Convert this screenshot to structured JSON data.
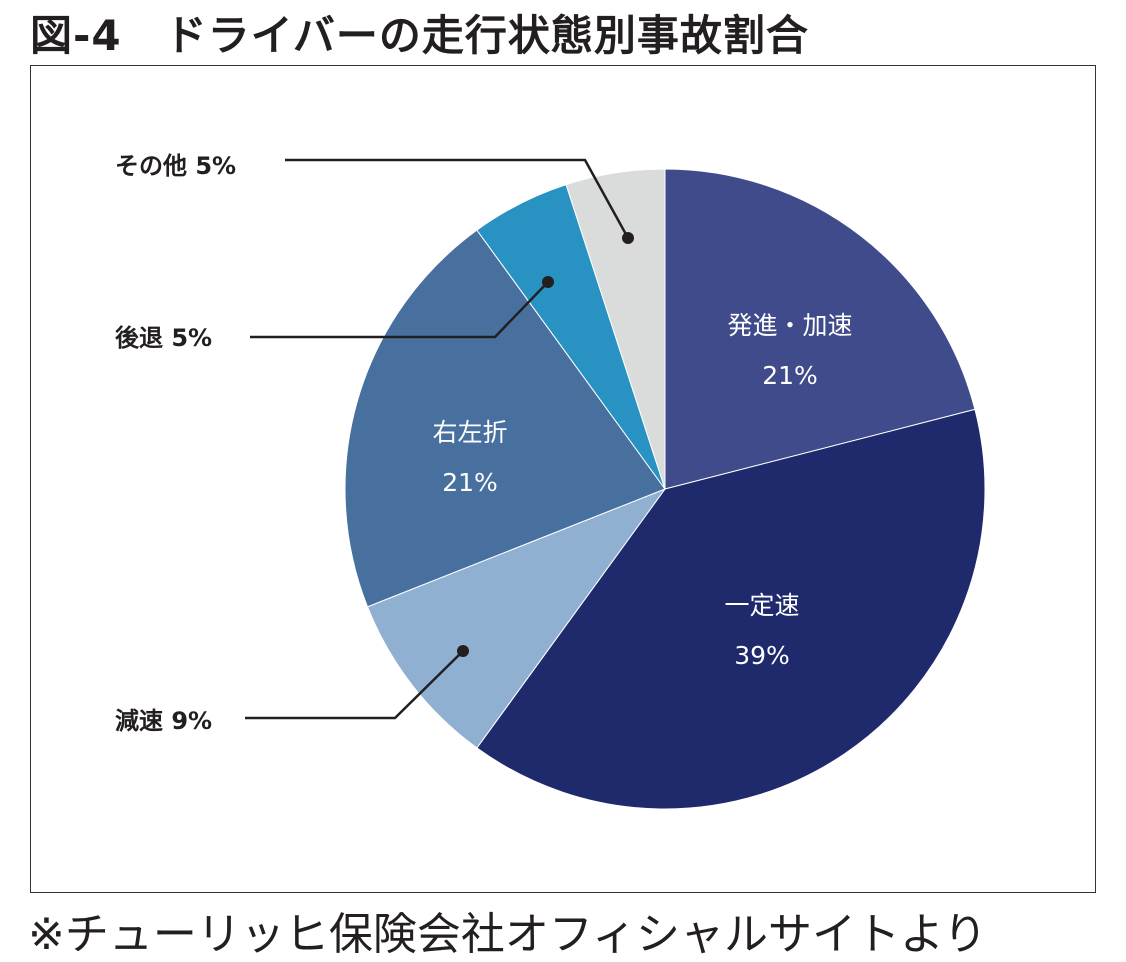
{
  "title": "図-4　ドライバーの走行状態別事故割合",
  "source": "※チューリッヒ保険会社オフィシャルサイトより",
  "chart_data": {
    "type": "pie",
    "title": "図-4　ドライバーの走行状態別事故割合",
    "start": "12 o'clock, clockwise",
    "slices": [
      {
        "label": "発進・加速",
        "value": 21,
        "text": "21%",
        "color": "#3f4b8b",
        "label_position": "inside"
      },
      {
        "label": "一定速",
        "value": 39,
        "text": "39%",
        "color": "#1f2a6c",
        "label_position": "inside"
      },
      {
        "label": "減速",
        "value": 9,
        "text": "減速 9%",
        "color": "#8fb0d1",
        "label_position": "outside"
      },
      {
        "label": "右左折",
        "value": 21,
        "text": "21%",
        "color": "#48709f",
        "label_position": "inside"
      },
      {
        "label": "後退",
        "value": 5,
        "text": "後退 5%",
        "color": "#2893c3",
        "label_position": "outside"
      },
      {
        "label": "その他",
        "value": 5,
        "text": "その他 5%",
        "color": "#d9dcdb",
        "label_position": "outside"
      }
    ]
  }
}
